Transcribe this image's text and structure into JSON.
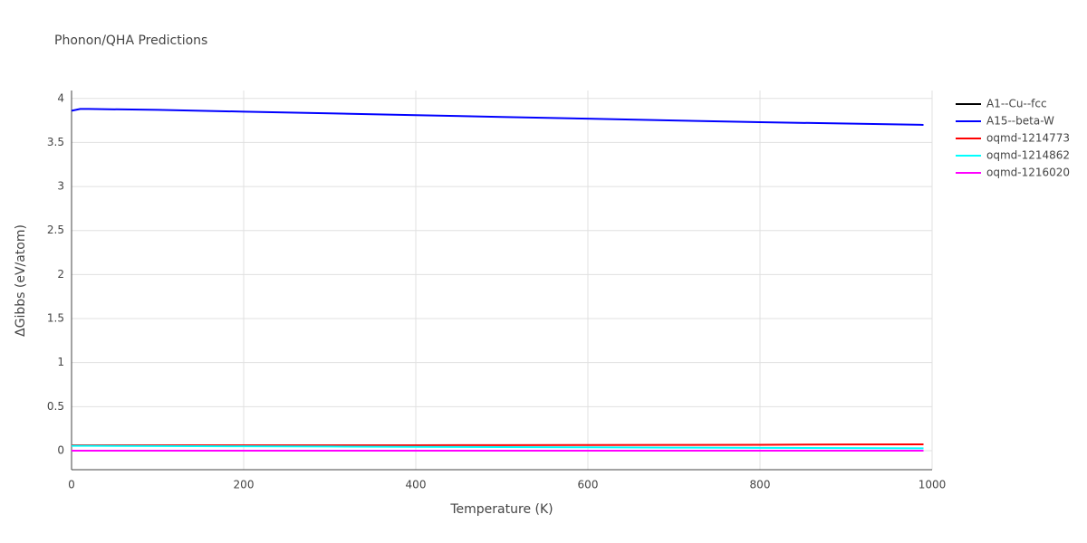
{
  "chart_data": {
    "type": "line",
    "title": "Phonon/QHA Predictions",
    "x_label": "Temperature (K)",
    "y_label": "ΔGibbs (eV/atom)",
    "x": [
      0,
      10,
      20,
      100,
      200,
      300,
      400,
      500,
      600,
      700,
      800,
      900,
      990
    ],
    "series": [
      {
        "name": "A1--Cu--fcc",
        "color": "#000000",
        "values": [
          0,
          0,
          0,
          0,
          0,
          0,
          0,
          0,
          0,
          0,
          0,
          0,
          0
        ]
      },
      {
        "name": "A15--beta-W",
        "color": "#0000ff",
        "values": [
          3.86,
          3.88,
          3.88,
          3.87,
          3.85,
          3.83,
          3.81,
          3.79,
          3.77,
          3.75,
          3.73,
          3.715,
          3.7
        ]
      },
      {
        "name": "oqmd-1214773",
        "color": "#ff0000",
        "values": [
          0.062,
          0.062,
          0.062,
          0.062,
          0.062,
          0.062,
          0.062,
          0.063,
          0.064,
          0.065,
          0.067,
          0.07,
          0.072
        ]
      },
      {
        "name": "oqmd-1214862",
        "color": "#00ffff",
        "values": [
          0.055,
          0.055,
          0.055,
          0.053,
          0.05,
          0.047,
          0.044,
          0.041,
          0.038,
          0.035,
          0.032,
          0.029,
          0.027
        ]
      },
      {
        "name": "oqmd-1216020",
        "color": "#ff00ff",
        "values": [
          0,
          0,
          0,
          0,
          0,
          0,
          0,
          0,
          0,
          0,
          0,
          0,
          0
        ]
      }
    ],
    "xlim": [
      0,
      1000
    ],
    "xticks": [
      0,
      200,
      400,
      600,
      800,
      1000
    ],
    "ylim": [
      -0.216,
      4.09
    ],
    "yticks": [
      0,
      0.5,
      1,
      1.5,
      2,
      2.5,
      3,
      3.5,
      4
    ],
    "grid": true
  }
}
